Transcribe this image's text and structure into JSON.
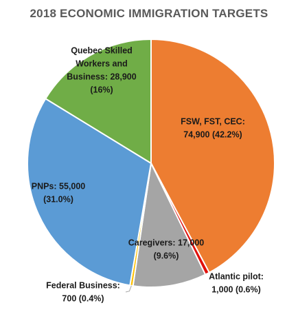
{
  "chart_data": {
    "type": "pie",
    "title": "2018 ECONOMIC IMMIGRATION TARGETS",
    "slices": [
      {
        "category": "FSW, FST, CEC",
        "value": 74900,
        "percent": 42.2,
        "color": "#ED7D31",
        "label_lines": [
          "FSW, FST, CEC:",
          "74,900 (42.2%)"
        ]
      },
      {
        "category": "Atlantic pilot",
        "value": 1000,
        "percent": 0.6,
        "color": "#E0100B",
        "label_lines": [
          "Atlantic pilot:",
          "1,000 (0.6%)"
        ]
      },
      {
        "category": "Caregivers",
        "value": 17000,
        "percent": 9.6,
        "color": "#A5A5A5",
        "label_lines": [
          "Caregivers: 17,000",
          "(9.6%)"
        ]
      },
      {
        "category": "Federal Business",
        "value": 700,
        "percent": 0.4,
        "color": "#FFC000",
        "label_lines": [
          "Federal Business:",
          "700 (0.4%)"
        ]
      },
      {
        "category": "PNPs",
        "value": 55000,
        "percent": 31.0,
        "color": "#5B9BD5",
        "label_lines": [
          "PNPs: 55,000",
          "(31.0%)"
        ]
      },
      {
        "category": "Quebec Skilled Workers and Business",
        "value": 28900,
        "percent": 16,
        "color": "#70AD47",
        "label_lines": [
          "Quebec Skilled",
          "Workers and",
          "Business: 28,900",
          "(16%)"
        ]
      }
    ]
  }
}
